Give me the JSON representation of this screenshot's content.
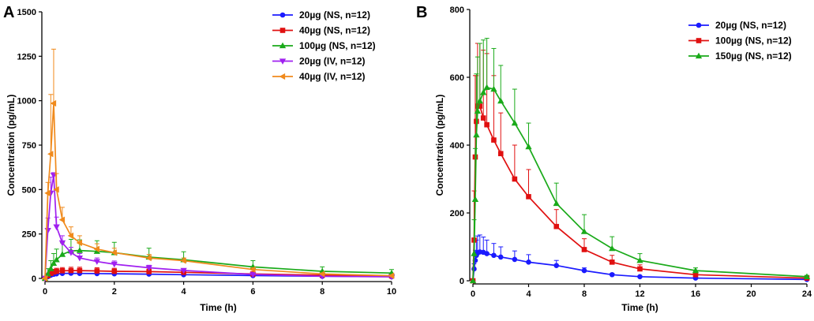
{
  "chart_data": [
    {
      "panel_label": "A",
      "type": "line",
      "xlabel": "Time (h)",
      "ylabel": "Concentration (pg/mL)",
      "xlim": [
        0,
        10
      ],
      "ylim": [
        0,
        1500
      ],
      "xticks": [
        "0",
        "2",
        "4",
        "6",
        "8",
        "10"
      ],
      "yticks": [
        "0",
        "250",
        "500",
        "750",
        "1000",
        "1250",
        "1500"
      ],
      "legend_position": "top-right",
      "series": [
        {
          "name": "20µg (NS, n=12)",
          "color": "#1b1bff",
          "marker": "circle",
          "x": [
            0,
            0.083,
            0.167,
            0.25,
            0.333,
            0.5,
            0.75,
            1,
            1.5,
            2,
            3,
            4,
            6,
            8,
            10
          ],
          "y": [
            0,
            10,
            18,
            23,
            26,
            28,
            29,
            28,
            27,
            26,
            24,
            21,
            16,
            12,
            10
          ],
          "err": [
            0,
            4,
            6,
            7,
            8,
            9,
            9,
            9,
            8,
            8,
            7,
            7,
            6,
            5,
            4
          ]
        },
        {
          "name": "40µg (NS, n=12)",
          "color": "#e01010",
          "marker": "square",
          "x": [
            0,
            0.083,
            0.167,
            0.25,
            0.333,
            0.5,
            0.75,
            1,
            1.5,
            2,
            3,
            4,
            6,
            8,
            10
          ],
          "y": [
            0,
            15,
            28,
            36,
            40,
            43,
            44,
            44,
            42,
            40,
            38,
            34,
            25,
            18,
            14
          ],
          "err": [
            0,
            8,
            12,
            15,
            17,
            18,
            19,
            19,
            18,
            17,
            15,
            13,
            11,
            9,
            7
          ]
        },
        {
          "name": "100µg (NS, n=12)",
          "color": "#1aaa1a",
          "marker": "triangle",
          "x": [
            0,
            0.083,
            0.167,
            0.25,
            0.333,
            0.5,
            0.75,
            1,
            1.5,
            2,
            3,
            4,
            6,
            8,
            10
          ],
          "y": [
            0,
            25,
            55,
            85,
            105,
            135,
            155,
            157,
            152,
            145,
            120,
            105,
            65,
            40,
            30
          ],
          "err": [
            0,
            30,
            45,
            55,
            60,
            65,
            65,
            60,
            60,
            58,
            50,
            45,
            35,
            25,
            20
          ]
        },
        {
          "name": "20µg (IV, n=12)",
          "color": "#a020f0",
          "marker": "triangle-down",
          "x": [
            0,
            0.083,
            0.167,
            0.25,
            0.333,
            0.5,
            0.75,
            1,
            1.5,
            2,
            3,
            4,
            6,
            8,
            10
          ],
          "y": [
            0,
            270,
            480,
            580,
            290,
            200,
            145,
            115,
            95,
            80,
            60,
            45,
            22,
            12,
            9
          ],
          "err": [
            0,
            70,
            90,
            15,
            55,
            40,
            30,
            25,
            20,
            18,
            14,
            10,
            6,
            4,
            3
          ]
        },
        {
          "name": "40µg (IV, n=12)",
          "color": "#f08a1c",
          "marker": "triangle-left",
          "x": [
            0,
            0.083,
            0.167,
            0.25,
            0.333,
            0.5,
            0.75,
            1,
            1.5,
            2,
            3,
            4,
            6,
            8,
            10
          ],
          "y": [
            0,
            480,
            700,
            985,
            500,
            330,
            240,
            200,
            165,
            145,
            115,
            100,
            50,
            25,
            15
          ],
          "err": [
            0,
            60,
            335,
            305,
            90,
            70,
            50,
            40,
            30,
            25,
            20,
            15,
            10,
            6,
            4
          ]
        }
      ]
    },
    {
      "panel_label": "B",
      "type": "line",
      "xlabel": "Time (h)",
      "ylabel": "Concentration (pg/mL)",
      "xlim": [
        0,
        24
      ],
      "ylim": [
        0,
        800
      ],
      "xticks": [
        "0",
        "4",
        "8",
        "12",
        "16",
        "20",
        "24"
      ],
      "yticks": [
        "0",
        "200",
        "400",
        "600",
        "800"
      ],
      "legend_position": "top-right",
      "series": [
        {
          "name": "20µg (NS, n=12)",
          "color": "#1b1bff",
          "marker": "circle",
          "x": [
            0,
            0.083,
            0.167,
            0.25,
            0.333,
            0.5,
            0.75,
            1,
            1.5,
            2,
            3,
            4,
            6,
            8,
            10,
            12,
            16,
            24
          ],
          "y": [
            0,
            35,
            60,
            75,
            82,
            85,
            84,
            80,
            75,
            70,
            63,
            55,
            45,
            30,
            18,
            12,
            8,
            4
          ],
          "err": [
            0,
            15,
            30,
            45,
            50,
            50,
            45,
            40,
            35,
            30,
            25,
            22,
            15,
            8,
            4,
            3,
            2,
            1
          ]
        },
        {
          "name": "100µg (NS, n=12)",
          "color": "#e01010",
          "marker": "square",
          "x": [
            0,
            0.083,
            0.167,
            0.25,
            0.333,
            0.5,
            0.75,
            1,
            1.5,
            2,
            3,
            4,
            6,
            8,
            10,
            12,
            16,
            24
          ],
          "y": [
            0,
            120,
            365,
            470,
            515,
            515,
            480,
            460,
            415,
            375,
            300,
            248,
            160,
            92,
            55,
            35,
            18,
            8
          ],
          "err": [
            0,
            145,
            240,
            135,
            185,
            185,
            200,
            210,
            190,
            120,
            100,
            80,
            50,
            32,
            20,
            12,
            6,
            3
          ]
        },
        {
          "name": "150µg (NS, n=12)",
          "color": "#1aaa1a",
          "marker": "triangle",
          "x": [
            0,
            0.083,
            0.167,
            0.25,
            0.333,
            0.5,
            0.75,
            1,
            1.5,
            2,
            3,
            4,
            6,
            8,
            10,
            12,
            16,
            24
          ],
          "y": [
            0,
            80,
            240,
            430,
            500,
            530,
            555,
            570,
            565,
            530,
            465,
            395,
            228,
            145,
            95,
            60,
            30,
            12
          ],
          "err": [
            0,
            100,
            150,
            180,
            160,
            170,
            155,
            145,
            120,
            105,
            100,
            70,
            60,
            50,
            35,
            20,
            8,
            4
          ]
        }
      ]
    }
  ]
}
